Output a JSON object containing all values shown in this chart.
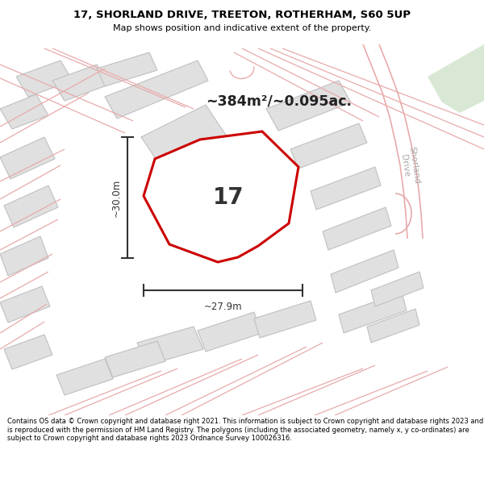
{
  "title_line1": "17, SHORLAND DRIVE, TREETON, ROTHERHAM, S60 5UP",
  "title_line2": "Map shows position and indicative extent of the property.",
  "area_label": "~384m²/~0.095ac.",
  "number_label": "17",
  "dim_horizontal": "~27.9m",
  "dim_vertical": "~30.0m",
  "road_label": "Shorland\nDrive",
  "footer_text": "Contains OS data © Crown copyright and database right 2021. This information is subject to Crown copyright and database rights 2023 and is reproduced with the permission of HM Land Registry. The polygons (including the associated geometry, namely x, y co-ordinates) are subject to Crown copyright and database rights 2023 Ordnance Survey 100026316.",
  "map_bg": "#f5f5f5",
  "plot_fill": "#ffffff",
  "plot_edge": "#cc0000",
  "other_plot_fill": "#e0e0e0",
  "other_plot_edge": "#c0c0c0",
  "pink_line_color": "#e8aaaa",
  "green_patch": "#d8e8d4",
  "title_bg": "#ffffff",
  "footer_bg": "#ffffff",
  "dim_line_color": "#333333",
  "label_color": "#222222",
  "road_text_color": "#aaaaaa",
  "number_color": "#333333"
}
